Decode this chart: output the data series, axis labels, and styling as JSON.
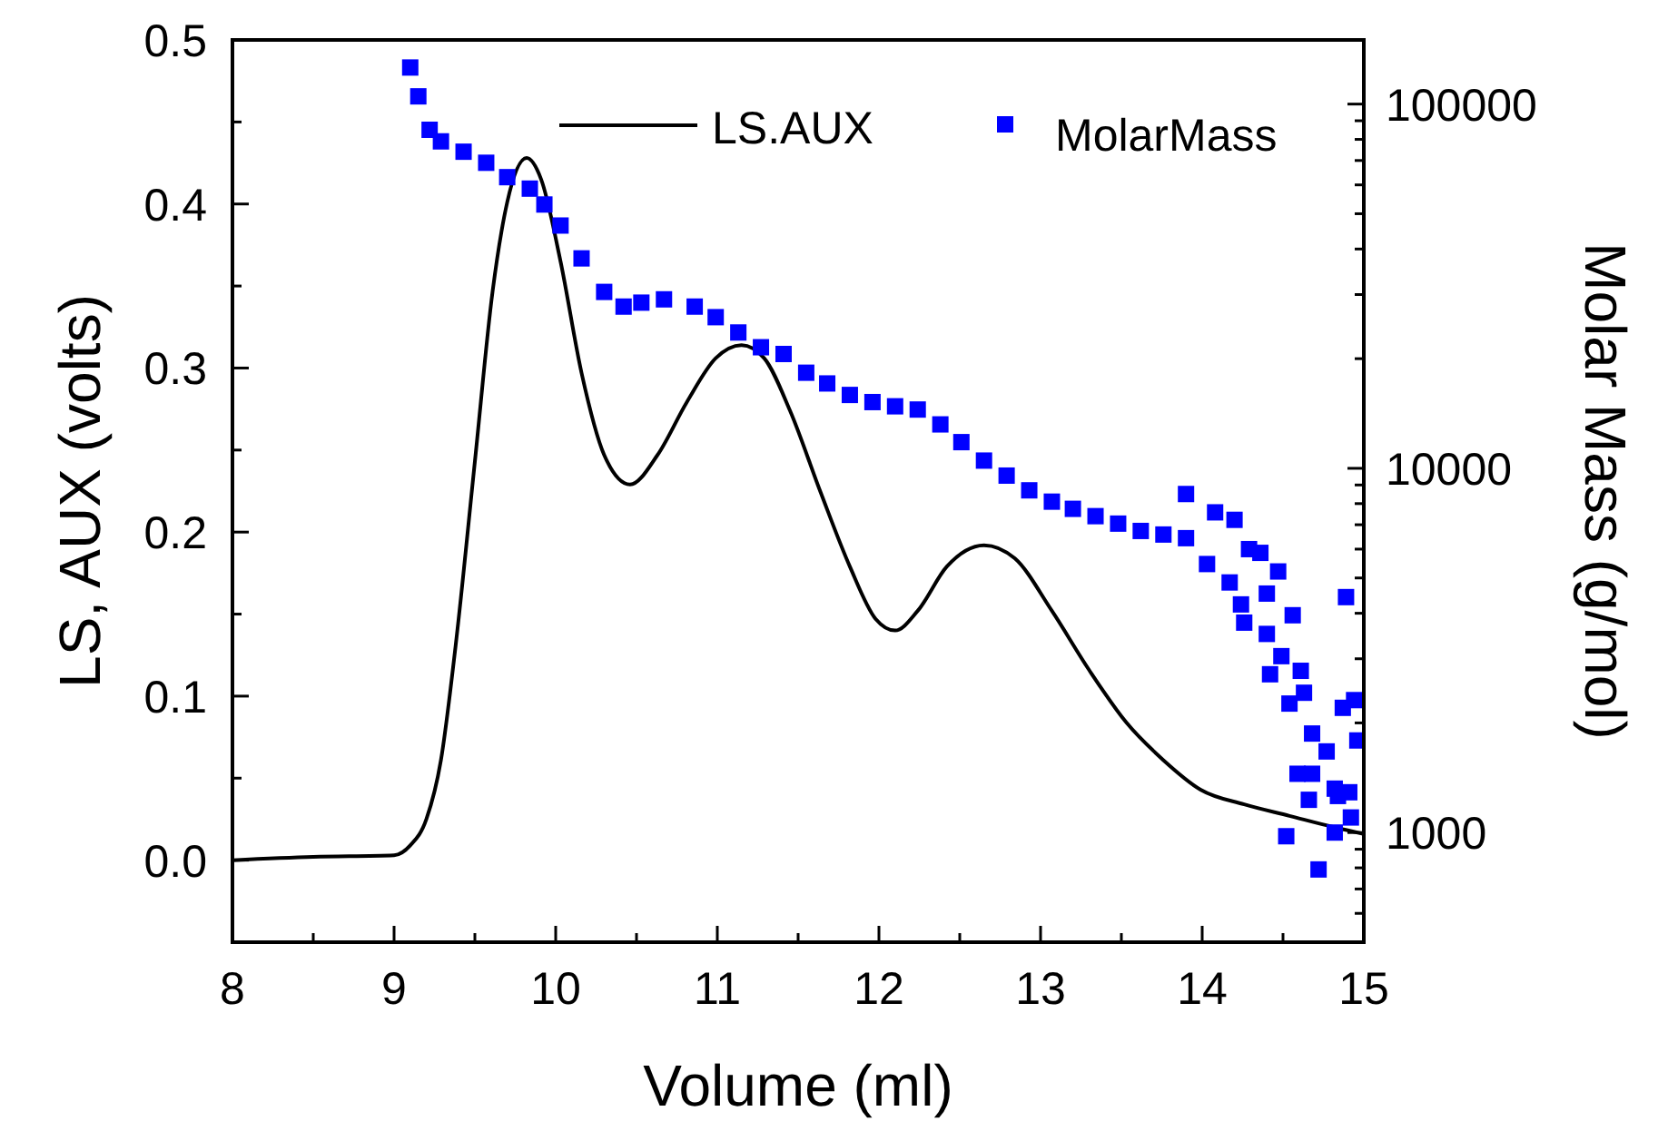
{
  "chart_data": {
    "type": "line",
    "xlabel": "Volume (ml)",
    "ylabel": "LS, AUX (volts)",
    "y2label": "Molar Mass (g/mol)",
    "xlim": [
      8,
      15
    ],
    "xticks": [
      8,
      {
        "value": 8.5,
        "label": null
      },
      9,
      {
        "value": 9.5,
        "label": null
      },
      10,
      {
        "value": 10.5,
        "label": null
      },
      11,
      {
        "value": 11.5,
        "label": null
      },
      12,
      {
        "value": 12.5,
        "label": null
      },
      13,
      {
        "value": 13.5,
        "label": null
      },
      14,
      {
        "value": 14.5,
        "label": null
      },
      15
    ],
    "ylim": [
      -0.05,
      0.5
    ],
    "yticks": [
      {
        "value": -0.05,
        "label": null
      },
      {
        "value": 0,
        "label": "0.0"
      },
      {
        "value": 0.05,
        "label": null
      },
      0.1,
      {
        "value": 0.15,
        "label": null
      },
      0.2,
      {
        "value": 0.25,
        "label": null
      },
      0.3,
      {
        "value": 0.35,
        "label": null
      },
      0.4,
      {
        "value": 0.45,
        "label": null
      },
      0.5
    ],
    "y2lim": [
      500,
      150000
    ],
    "y2ticks": [
      {
        "value": 600,
        "label": null
      },
      {
        "value": 700,
        "label": null
      },
      {
        "value": 800,
        "label": null
      },
      {
        "value": 900,
        "label": null
      },
      1000,
      {
        "value": 2000,
        "label": null
      },
      {
        "value": 3000,
        "label": null
      },
      {
        "value": 4000,
        "label": null
      },
      {
        "value": 5000,
        "label": null
      },
      {
        "value": 6000,
        "label": null
      },
      {
        "value": 7000,
        "label": null
      },
      {
        "value": 8000,
        "label": null
      },
      {
        "value": 9000,
        "label": null
      },
      10000,
      {
        "value": 20000,
        "label": null
      },
      {
        "value": 30000,
        "label": null
      },
      {
        "value": 40000,
        "label": null
      },
      {
        "value": 50000,
        "label": null
      },
      {
        "value": 60000,
        "label": null
      },
      {
        "value": 70000,
        "label": null
      },
      {
        "value": 80000,
        "label": null
      },
      {
        "value": 90000,
        "label": null
      },
      100000
    ],
    "log": "y2",
    "grid": false,
    "legend": "top right",
    "series": [
      {
        "name": "LS.AUX",
        "color": "#000000",
        "marker": "none",
        "line_style": "solid",
        "x": [
          8,
          8.5,
          9.0,
          9.1,
          9.2,
          9.29,
          9.38,
          9.5,
          9.61,
          9.7,
          9.82,
          9.91,
          10.03,
          10.16,
          10.3,
          10.46,
          10.63,
          10.81,
          10.99,
          11.15,
          11.29,
          11.45,
          11.64,
          11.82,
          11.98,
          12.1,
          12.24,
          12.42,
          12.65,
          12.84,
          13.07,
          13.3,
          13.53,
          13.76,
          13.99,
          14.26,
          14.54,
          14.82,
          15
        ],
        "values": [
          0.0,
          0.002,
          0.003,
          0.009,
          0.025,
          0.061,
          0.13,
          0.243,
          0.347,
          0.401,
          0.428,
          0.415,
          0.365,
          0.297,
          0.247,
          0.229,
          0.247,
          0.279,
          0.306,
          0.314,
          0.306,
          0.274,
          0.224,
          0.179,
          0.147,
          0.14,
          0.152,
          0.179,
          0.192,
          0.184,
          0.152,
          0.116,
          0.084,
          0.061,
          0.043,
          0.034,
          0.027,
          0.02,
          0.016
        ]
      },
      {
        "name": "MolarMass",
        "type": "scatter",
        "axis": "y2",
        "color": "#0000ff",
        "marker": "square",
        "x": [
          9.1,
          9.15,
          9.22,
          9.29,
          9.43,
          9.57,
          9.7,
          9.84,
          9.93,
          10.03,
          10.16,
          10.3,
          10.42,
          10.53,
          10.67,
          10.86,
          10.99,
          11.13,
          11.27,
          11.41,
          11.55,
          11.68,
          11.82,
          11.96,
          12.1,
          12.24,
          12.38,
          12.51,
          12.65,
          12.79,
          12.93,
          13.07,
          13.2,
          13.34,
          13.48,
          13.62,
          13.76,
          13.9,
          13.9,
          14.08,
          14.2,
          14.03,
          14.17,
          14.29,
          14.36,
          14.24,
          14.26,
          14.4,
          14.47,
          14.4,
          14.49,
          14.42,
          14.61,
          14.56,
          14.54,
          14.63,
          14.68,
          14.59,
          14.68,
          14.77,
          14.82,
          14.66,
          14.52,
          14.72,
          14.82,
          14.89,
          14.87,
          14.94,
          14.96,
          14.91,
          14.92,
          14.84
        ],
        "values": [
          126000,
          105000,
          85000,
          79000,
          74000,
          69000,
          63000,
          58600,
          53000,
          46400,
          37700,
          30500,
          27800,
          28500,
          29100,
          27800,
          26000,
          23600,
          21500,
          20600,
          18300,
          17100,
          15900,
          15200,
          14800,
          14500,
          13200,
          11800,
          10500,
          9550,
          8700,
          8100,
          7740,
          7390,
          7050,
          6730,
          6580,
          6430,
          8500,
          7570,
          7220,
          5460,
          4860,
          6000,
          5860,
          4230,
          3770,
          4530,
          5210,
          3510,
          3050,
          2720,
          2780,
          3950,
          2260,
          2420,
          1870,
          1450,
          1450,
          1670,
          1320,
          1230,
          977,
          792,
          1000,
          4430,
          2200,
          2310,
          1790,
          1290,
          1100,
          1260
        ]
      }
    ]
  }
}
